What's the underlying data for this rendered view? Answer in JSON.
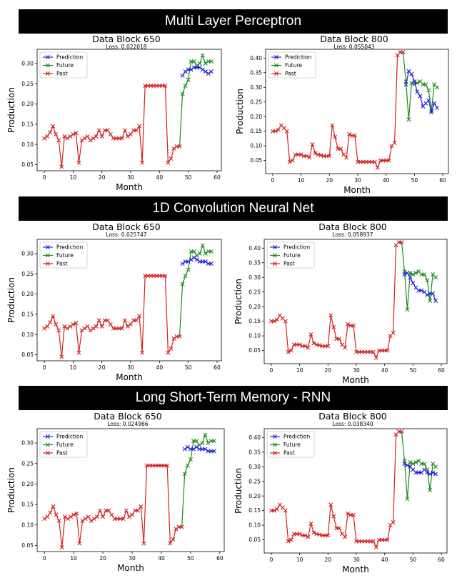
{
  "sections": [
    {
      "title": "Multi Layer Perceptron"
    },
    {
      "title": "1D Convolution Neural Net"
    },
    {
      "title": "Long Short-Term Memory - RNN"
    }
  ],
  "legend": {
    "prediction": "Prediction",
    "future": "Future",
    "past": "Past"
  },
  "colors": {
    "prediction": "#1f1fe0",
    "future": "#1a8c1a",
    "past": "#d42020"
  },
  "chart_data": [
    {
      "type": "line",
      "section": "Multi Layer Perceptron",
      "title": "Data Block 650",
      "subtitle": "Loss: 0.022018",
      "xlabel": "Month",
      "ylabel": "Production",
      "xlim": [
        -2.5,
        61.5
      ],
      "ylim": [
        0.035,
        0.335
      ],
      "xticks": [
        0,
        10,
        20,
        30,
        40,
        50,
        60
      ],
      "yticks": [
        0.05,
        0.1,
        0.15,
        0.2,
        0.25,
        0.3
      ],
      "legend_position": "top-left",
      "past": [
        0.115,
        0.12,
        0.13,
        0.145,
        0.125,
        0.11,
        0.045,
        0.12,
        0.115,
        0.12,
        0.125,
        0.128,
        0.055,
        0.11,
        0.115,
        0.12,
        0.11,
        0.115,
        0.12,
        0.135,
        0.12,
        0.135,
        0.135,
        0.125,
        0.115,
        0.115,
        0.115,
        0.115,
        0.135,
        0.12,
        0.125,
        0.135,
        0.135,
        0.145,
        0.055,
        0.245,
        0.245,
        0.245,
        0.245,
        0.245,
        0.245,
        0.245,
        0.245,
        0.055,
        0.065,
        0.09,
        0.095,
        0.095
      ],
      "future": [
        0.225,
        0.245,
        0.26,
        0.305,
        0.305,
        0.295,
        0.3,
        0.32,
        0.3,
        0.305,
        0.305
      ],
      "prediction": [
        0.27,
        0.28,
        0.285,
        0.285,
        0.29,
        0.29,
        0.29,
        0.285,
        0.28,
        0.275,
        0.28
      ]
    },
    {
      "type": "line",
      "section": "Multi Layer Perceptron",
      "title": "Data Block 800",
      "subtitle": "Loss: 0.055043",
      "xlabel": "Month",
      "ylabel": "Production",
      "xlim": [
        -2.5,
        62
      ],
      "ylim": [
        0.005,
        0.43
      ],
      "xticks": [
        0,
        10,
        20,
        30,
        40,
        50,
        60
      ],
      "yticks": [
        0.05,
        0.1,
        0.15,
        0.2,
        0.25,
        0.3,
        0.35,
        0.4
      ],
      "legend_position": "top-left",
      "past": [
        0.15,
        0.15,
        0.155,
        0.17,
        0.16,
        0.15,
        0.045,
        0.05,
        0.07,
        0.07,
        0.07,
        0.065,
        0.065,
        0.06,
        0.105,
        0.075,
        0.07,
        0.068,
        0.065,
        0.065,
        0.065,
        0.17,
        0.13,
        0.09,
        0.09,
        0.07,
        0.06,
        0.14,
        0.135,
        0.135,
        0.045,
        0.045,
        0.045,
        0.045,
        0.045,
        0.045,
        0.045,
        0.025,
        0.05,
        0.05,
        0.05,
        0.05,
        0.1,
        0.11,
        0.41,
        0.42,
        0.42
      ],
      "future": [
        0.32,
        0.19,
        0.315,
        0.31,
        0.315,
        0.32,
        0.31,
        0.31,
        0.29,
        0.22,
        0.31,
        0.3
      ],
      "prediction": [
        0.31,
        0.355,
        0.345,
        0.32,
        0.285,
        0.27,
        0.235,
        0.245,
        0.255,
        0.215,
        0.245,
        0.23
      ]
    },
    {
      "type": "line",
      "section": "1D Convolution Neural Net",
      "title": "Data Block 650",
      "subtitle": "Loss: 0.025747",
      "xlabel": "Month",
      "ylabel": "Production",
      "xlim": [
        -2.5,
        61.5
      ],
      "ylim": [
        0.035,
        0.335
      ],
      "xticks": [
        0,
        10,
        20,
        30,
        40,
        50,
        60
      ],
      "yticks": [
        0.05,
        0.1,
        0.15,
        0.2,
        0.25,
        0.3
      ],
      "legend_position": "top-left",
      "past": [
        0.115,
        0.12,
        0.13,
        0.145,
        0.125,
        0.11,
        0.045,
        0.12,
        0.115,
        0.12,
        0.125,
        0.128,
        0.055,
        0.11,
        0.115,
        0.12,
        0.11,
        0.115,
        0.12,
        0.135,
        0.12,
        0.135,
        0.135,
        0.125,
        0.115,
        0.115,
        0.115,
        0.115,
        0.135,
        0.12,
        0.125,
        0.135,
        0.135,
        0.145,
        0.055,
        0.245,
        0.245,
        0.245,
        0.245,
        0.245,
        0.245,
        0.245,
        0.245,
        0.055,
        0.065,
        0.09,
        0.095,
        0.095
      ],
      "future": [
        0.225,
        0.245,
        0.26,
        0.305,
        0.305,
        0.295,
        0.3,
        0.32,
        0.3,
        0.305,
        0.305
      ],
      "prediction": [
        0.275,
        0.28,
        0.28,
        0.285,
        0.29,
        0.285,
        0.28,
        0.28,
        0.28,
        0.275,
        0.275
      ]
    },
    {
      "type": "line",
      "section": "1D Convolution Neural Net",
      "title": "Data Block 800",
      "subtitle": "Loss: 0.058937",
      "xlabel": "Month",
      "ylabel": "Production",
      "xlim": [
        -2.5,
        62
      ],
      "ylim": [
        0.005,
        0.43
      ],
      "xticks": [
        0,
        10,
        20,
        30,
        40,
        50,
        60
      ],
      "yticks": [
        0.05,
        0.1,
        0.15,
        0.2,
        0.25,
        0.3,
        0.35,
        0.4
      ],
      "legend_position": "top-left",
      "past": [
        0.15,
        0.15,
        0.155,
        0.17,
        0.16,
        0.15,
        0.045,
        0.05,
        0.07,
        0.07,
        0.07,
        0.065,
        0.065,
        0.06,
        0.105,
        0.075,
        0.07,
        0.068,
        0.065,
        0.065,
        0.065,
        0.17,
        0.13,
        0.09,
        0.09,
        0.07,
        0.06,
        0.14,
        0.135,
        0.135,
        0.045,
        0.045,
        0.045,
        0.045,
        0.045,
        0.045,
        0.045,
        0.025,
        0.05,
        0.05,
        0.05,
        0.05,
        0.1,
        0.11,
        0.41,
        0.42,
        0.42
      ],
      "future": [
        0.32,
        0.19,
        0.315,
        0.31,
        0.315,
        0.32,
        0.31,
        0.31,
        0.29,
        0.22,
        0.31,
        0.3
      ],
      "prediction": [
        0.31,
        0.315,
        0.3,
        0.28,
        0.265,
        0.255,
        0.255,
        0.25,
        0.24,
        0.245,
        0.245,
        0.22
      ]
    },
    {
      "type": "line",
      "section": "Long Short-Term Memory - RNN",
      "title": "Data Block 650",
      "subtitle": "Loss: 0.024966",
      "xlabel": "Month",
      "ylabel": "Production",
      "xlim": [
        -2.5,
        61.5
      ],
      "ylim": [
        0.035,
        0.335
      ],
      "xticks": [
        0,
        10,
        20,
        30,
        40,
        50,
        60
      ],
      "yticks": [
        0.05,
        0.1,
        0.15,
        0.2,
        0.25,
        0.3
      ],
      "legend_position": "top-left",
      "past": [
        0.115,
        0.12,
        0.13,
        0.145,
        0.125,
        0.11,
        0.045,
        0.12,
        0.115,
        0.12,
        0.125,
        0.128,
        0.055,
        0.11,
        0.115,
        0.12,
        0.11,
        0.115,
        0.12,
        0.135,
        0.12,
        0.135,
        0.135,
        0.125,
        0.115,
        0.115,
        0.115,
        0.115,
        0.135,
        0.12,
        0.125,
        0.135,
        0.135,
        0.145,
        0.055,
        0.245,
        0.245,
        0.245,
        0.245,
        0.245,
        0.245,
        0.245,
        0.245,
        0.055,
        0.065,
        0.09,
        0.095,
        0.095
      ],
      "future": [
        0.225,
        0.245,
        0.26,
        0.305,
        0.305,
        0.295,
        0.3,
        0.32,
        0.3,
        0.305,
        0.305
      ],
      "prediction": [
        0.285,
        0.29,
        0.285,
        0.285,
        0.29,
        0.285,
        0.285,
        0.285,
        0.28,
        0.28,
        0.28
      ]
    },
    {
      "type": "line",
      "section": "Long Short-Term Memory - RNN",
      "title": "Data Block 800",
      "subtitle": "Loss: 0.038340",
      "xlabel": "Month",
      "ylabel": "Production",
      "xlim": [
        -2.5,
        62
      ],
      "ylim": [
        0.005,
        0.43
      ],
      "xticks": [
        0,
        10,
        20,
        30,
        40,
        50,
        60
      ],
      "yticks": [
        0.05,
        0.1,
        0.15,
        0.2,
        0.25,
        0.3,
        0.35,
        0.4
      ],
      "legend_position": "top-left",
      "past": [
        0.15,
        0.15,
        0.155,
        0.17,
        0.16,
        0.15,
        0.045,
        0.05,
        0.07,
        0.07,
        0.07,
        0.065,
        0.065,
        0.06,
        0.105,
        0.075,
        0.07,
        0.068,
        0.065,
        0.065,
        0.065,
        0.17,
        0.13,
        0.09,
        0.09,
        0.07,
        0.06,
        0.14,
        0.135,
        0.135,
        0.045,
        0.045,
        0.045,
        0.045,
        0.045,
        0.045,
        0.045,
        0.025,
        0.05,
        0.05,
        0.05,
        0.05,
        0.1,
        0.11,
        0.41,
        0.42,
        0.42
      ],
      "future": [
        0.32,
        0.19,
        0.315,
        0.31,
        0.315,
        0.32,
        0.31,
        0.31,
        0.29,
        0.22,
        0.31,
        0.3
      ],
      "prediction": [
        0.31,
        0.305,
        0.3,
        0.29,
        0.28,
        0.28,
        0.28,
        0.29,
        0.28,
        0.275,
        0.28,
        0.275
      ]
    }
  ]
}
